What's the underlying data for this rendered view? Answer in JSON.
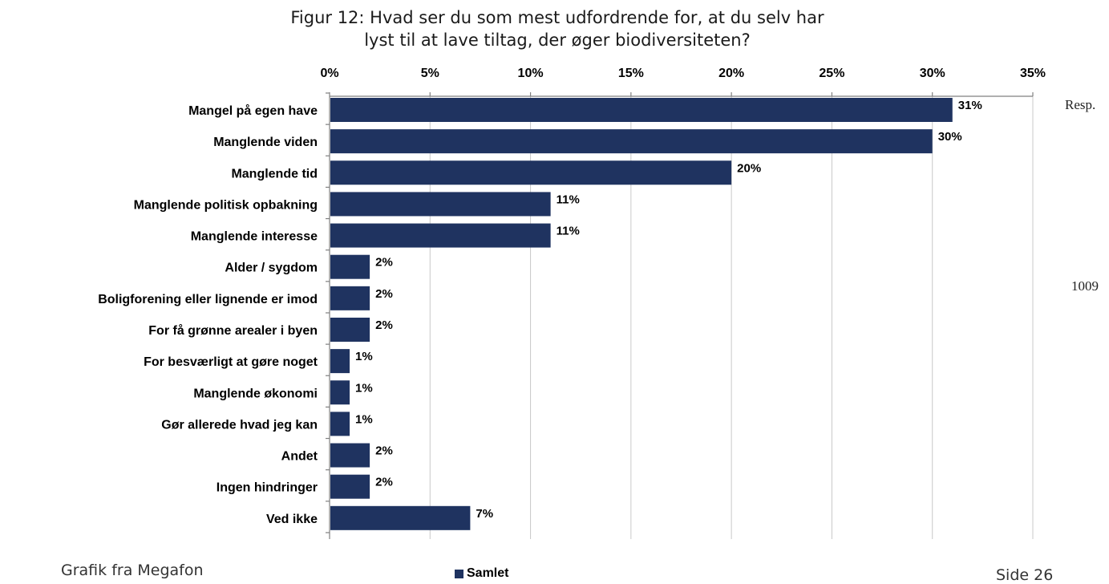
{
  "chart_data": {
    "type": "bar",
    "orientation": "horizontal",
    "title_line1": "Figur 12: Hvad ser du som mest udfordrende for, at du selv har",
    "title_line2": "lyst til at lave tiltag, der øger biodiversiteten?",
    "categories": [
      "Mangel på egen have",
      "Manglende viden",
      "Manglende tid",
      "Manglende politisk opbakning",
      "Manglende interesse",
      "Alder / sygdom",
      "Boligforening eller lignende er imod",
      "For få grønne arealer i byen",
      "For besværligt at gøre noget",
      "Manglende økonomi",
      "Gør allerede hvad jeg kan",
      "Andet",
      "Ingen hindringer",
      "Ved ikke"
    ],
    "series": [
      {
        "name": "Samlet",
        "values": [
          31,
          30,
          20,
          11,
          11,
          2,
          2,
          2,
          1,
          1,
          1,
          2,
          2,
          7
        ],
        "labels": [
          "31%",
          "30%",
          "20%",
          "11%",
          "11%",
          "2%",
          "2%",
          "2%",
          "1%",
          "1%",
          "1%",
          "2%",
          "2%",
          "7%"
        ]
      }
    ],
    "xlim": [
      0,
      35
    ],
    "x_ticks": [
      0,
      5,
      10,
      15,
      20,
      25,
      30,
      35
    ],
    "x_tick_labels": [
      "0%",
      "5%",
      "10%",
      "15%",
      "20%",
      "25%",
      "30%",
      "35%"
    ],
    "x_axis_position": "top",
    "grid": "vertical",
    "legend_position": "bottom",
    "bar_color": "#1f3360"
  },
  "resp": {
    "header": "Resp.",
    "value": "1009"
  },
  "footer": {
    "source": "Grafik fra Megafon",
    "page": "Side 26"
  }
}
